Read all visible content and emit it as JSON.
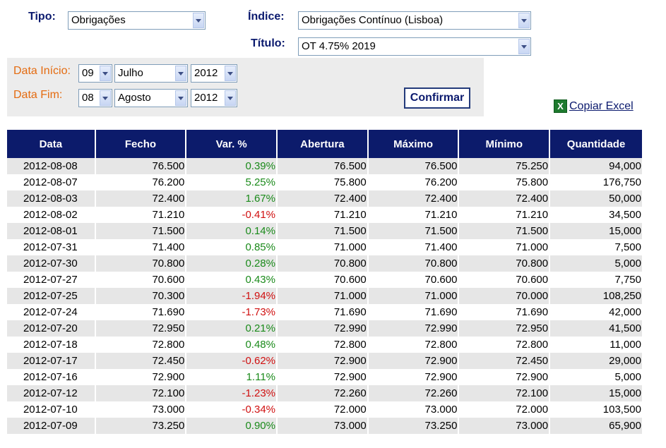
{
  "filters": {
    "tipo_label": "Tipo:",
    "tipo_value": "Obrigações",
    "indice_label": "Índice:",
    "indice_value": "Obrigações Contínuo (Lisboa)",
    "titulo_label": "Título:",
    "titulo_value": "OT 4.75% 2019"
  },
  "dates": {
    "inicio_label": "Data Início:",
    "inicio_day": "09",
    "inicio_month": "Julho",
    "inicio_year": "2012",
    "fim_label": "Data Fim:",
    "fim_day": "08",
    "fim_month": "Agosto",
    "fim_year": "2012",
    "confirm_label": "Confirmar"
  },
  "excel": {
    "label": "Copiar Excel",
    "icon": "excel-icon"
  },
  "colors": {
    "header_bg": "#0c1b6b",
    "positive": "#1a8a1a",
    "negative": "#d01010",
    "date_label": "#e46b10"
  },
  "table": {
    "headers": [
      "Data",
      "Fecho",
      "Var. %",
      "Abertura",
      "Máximo",
      "Mínimo",
      "Quantidade"
    ],
    "rows": [
      [
        "2012-08-08",
        "76.500",
        "0.39%",
        "76.500",
        "76.500",
        "75.250",
        "94,000"
      ],
      [
        "2012-08-07",
        "76.200",
        "5.25%",
        "75.800",
        "76.200",
        "75.800",
        "176,750"
      ],
      [
        "2012-08-03",
        "72.400",
        "1.67%",
        "72.400",
        "72.400",
        "72.400",
        "50,000"
      ],
      [
        "2012-08-02",
        "71.210",
        "-0.41%",
        "71.210",
        "71.210",
        "71.210",
        "34,500"
      ],
      [
        "2012-08-01",
        "71.500",
        "0.14%",
        "71.500",
        "71.500",
        "71.500",
        "15,000"
      ],
      [
        "2012-07-31",
        "71.400",
        "0.85%",
        "71.000",
        "71.400",
        "71.000",
        "7,500"
      ],
      [
        "2012-07-30",
        "70.800",
        "0.28%",
        "70.800",
        "70.800",
        "70.800",
        "5,000"
      ],
      [
        "2012-07-27",
        "70.600",
        "0.43%",
        "70.600",
        "70.600",
        "70.600",
        "7,750"
      ],
      [
        "2012-07-25",
        "70.300",
        "-1.94%",
        "71.000",
        "71.000",
        "70.000",
        "108,250"
      ],
      [
        "2012-07-24",
        "71.690",
        "-1.73%",
        "71.690",
        "71.690",
        "71.690",
        "42,000"
      ],
      [
        "2012-07-20",
        "72.950",
        "0.21%",
        "72.990",
        "72.990",
        "72.950",
        "41,500"
      ],
      [
        "2012-07-18",
        "72.800",
        "0.48%",
        "72.800",
        "72.800",
        "72.800",
        "11,000"
      ],
      [
        "2012-07-17",
        "72.450",
        "-0.62%",
        "72.900",
        "72.900",
        "72.450",
        "29,000"
      ],
      [
        "2012-07-16",
        "72.900",
        "1.11%",
        "72.900",
        "72.900",
        "72.900",
        "5,000"
      ],
      [
        "2012-07-12",
        "72.100",
        "-1.23%",
        "72.260",
        "72.260",
        "72.100",
        "15,000"
      ],
      [
        "2012-07-10",
        "73.000",
        "-0.34%",
        "72.000",
        "73.000",
        "72.000",
        "103,500"
      ],
      [
        "2012-07-09",
        "73.250",
        "0.90%",
        "73.000",
        "73.250",
        "73.000",
        "65,900"
      ]
    ]
  }
}
